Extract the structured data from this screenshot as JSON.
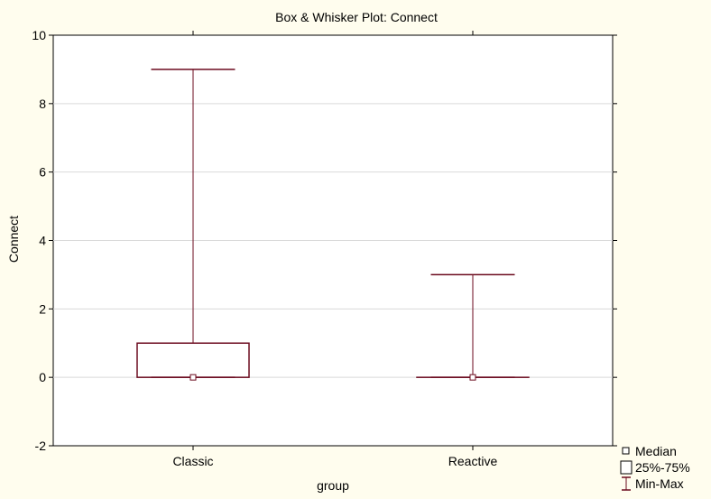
{
  "chart_data": {
    "type": "box",
    "title": "Box & Whisker Plot:  Connect",
    "xlabel": "group",
    "ylabel": "Connect",
    "ylim": [
      -2,
      10
    ],
    "yticks": [
      -2,
      0,
      2,
      4,
      6,
      8,
      10
    ],
    "grid": true,
    "legend_position": "bottom-right",
    "categories": [
      "Classic",
      "Reactive"
    ],
    "boxes": [
      {
        "category": "Classic",
        "min": 0,
        "q1": 0,
        "median": 0,
        "q3": 1,
        "max": 9
      },
      {
        "category": "Reactive",
        "min": 0,
        "q1": 0,
        "median": 0,
        "q3": 0,
        "max": 3
      }
    ],
    "legend": [
      {
        "symbol": "median-marker",
        "label": "Median"
      },
      {
        "symbol": "box",
        "label": "25%-75%"
      },
      {
        "symbol": "whisker",
        "label": "Min-Max"
      }
    ],
    "colors": {
      "background": "#FFFDEE",
      "plot_area": "#FFFFFF",
      "series": "#6B0A1E",
      "gridline": "#D9D9D9",
      "axis": "#000000"
    }
  }
}
